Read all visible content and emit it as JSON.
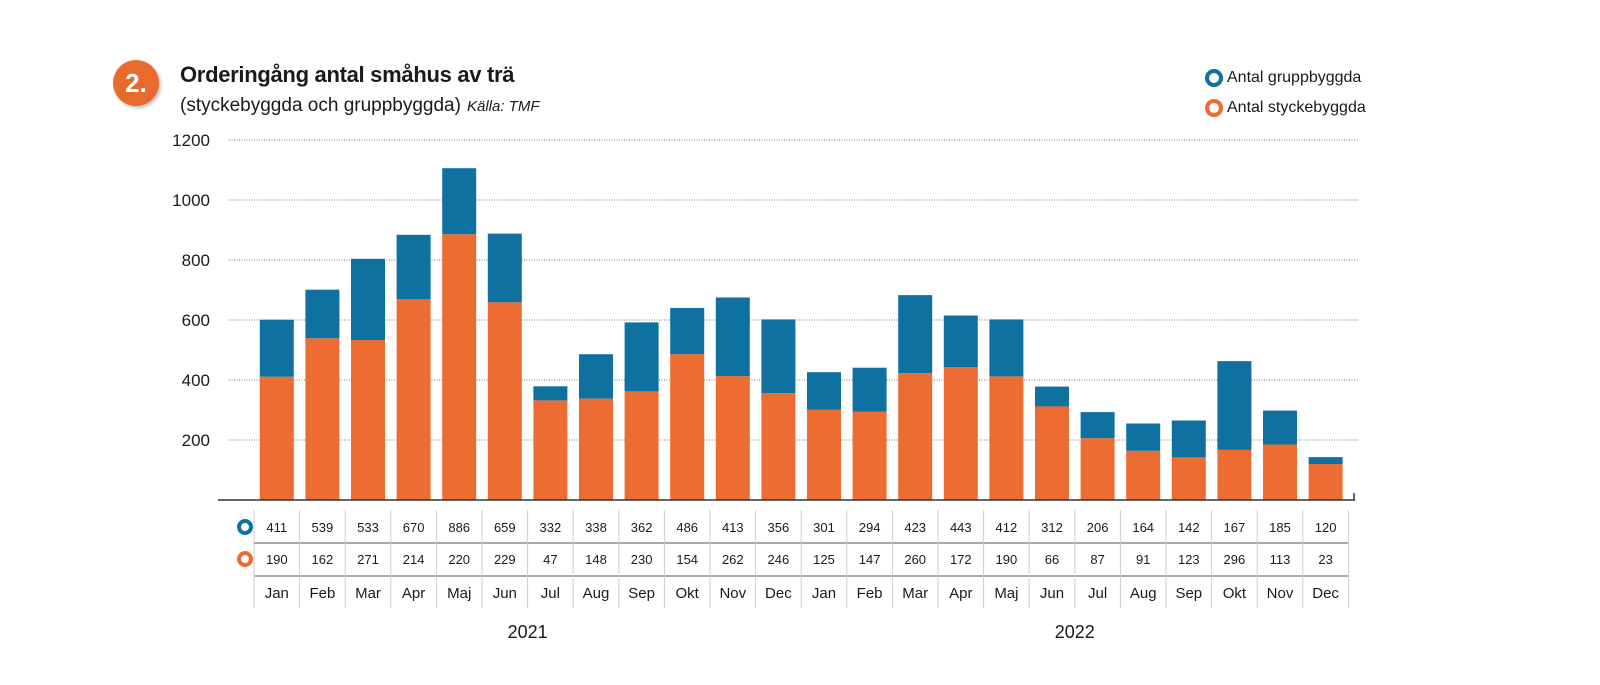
{
  "badge": "2.",
  "title": "Orderingång antal småhus av trä",
  "subtitle": "(styckebyggda och gruppbyggda)",
  "source": "Källa: TMF",
  "colors": {
    "stycke": "#ec6c31",
    "grupp": "#0e71a0",
    "badge": "#e86a2c"
  },
  "chart_data": {
    "type": "bar",
    "stacked": true,
    "categories": [
      "Jan",
      "Feb",
      "Mar",
      "Apr",
      "Maj",
      "Jun",
      "Jul",
      "Aug",
      "Sep",
      "Okt",
      "Nov",
      "Dec",
      "Jan",
      "Feb",
      "Mar",
      "Apr",
      "Maj",
      "Jun",
      "Jul",
      "Aug",
      "Sep",
      "Okt",
      "Nov",
      "Dec"
    ],
    "years": [
      {
        "label": "2021",
        "from": 0,
        "to": 11
      },
      {
        "label": "2022",
        "from": 12,
        "to": 23
      }
    ],
    "series": [
      {
        "name": "Antal styckebyggda",
        "color": "#ec6c31",
        "values": [
          411,
          539,
          533,
          670,
          886,
          659,
          332,
          338,
          362,
          486,
          413,
          356,
          301,
          294,
          423,
          443,
          412,
          312,
          206,
          164,
          142,
          167,
          185,
          120
        ]
      },
      {
        "name": "Antal gruppbyggda",
        "color": "#0e71a0",
        "values": [
          190,
          162,
          271,
          214,
          220,
          229,
          47,
          148,
          230,
          154,
          262,
          246,
          125,
          147,
          260,
          172,
          190,
          66,
          87,
          91,
          123,
          296,
          113,
          23
        ]
      }
    ],
    "legend": [
      {
        "name": "Antal gruppbyggda",
        "color": "#0e71a0"
      },
      {
        "name": "Antal styckebyggda",
        "color": "#ec6c31"
      }
    ],
    "ylim": [
      0,
      1200
    ],
    "yticks": [
      200,
      400,
      600,
      800,
      1000,
      1200
    ],
    "grid": true,
    "legend_position": "top-right",
    "table_row_colors": [
      "#0e71a0",
      "#ec6c31"
    ]
  }
}
